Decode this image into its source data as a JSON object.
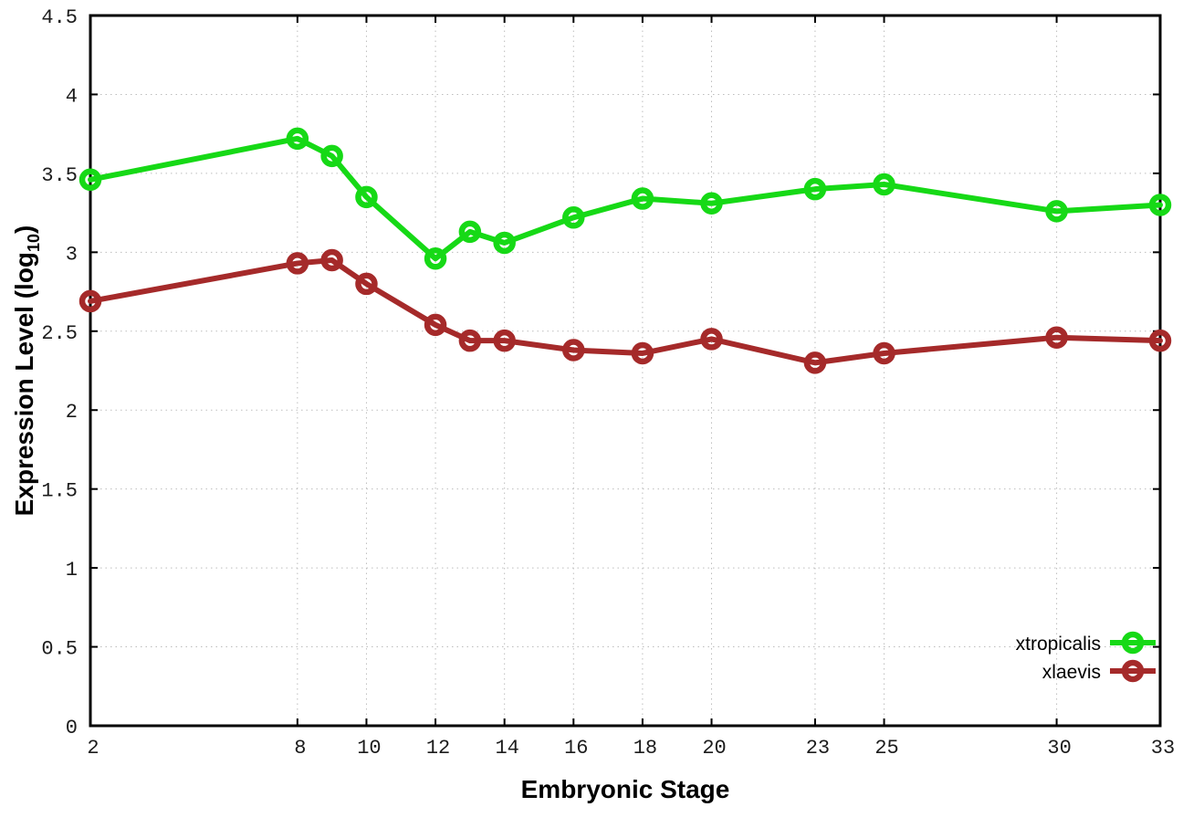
{
  "chart_data": {
    "type": "line",
    "title": "",
    "xlabel": "Embryonic Stage",
    "ylabel": {
      "main": "Expression Level (log",
      "sub": "10",
      "close": ")"
    },
    "x": [
      2,
      8,
      9,
      10,
      12,
      13,
      14,
      16,
      18,
      20,
      23,
      25,
      30,
      33
    ],
    "series": [
      {
        "name": "xtropicalis",
        "color": "#16d916",
        "values": [
          3.46,
          3.72,
          3.61,
          3.35,
          2.96,
          3.13,
          3.06,
          3.22,
          3.34,
          3.31,
          3.4,
          3.43,
          3.26,
          3.3
        ]
      },
      {
        "name": "xlaevis",
        "color": "#a52a2a",
        "values": [
          2.69,
          2.93,
          2.95,
          2.8,
          2.54,
          2.44,
          2.44,
          2.38,
          2.36,
          2.45,
          2.3,
          2.36,
          2.46,
          2.44
        ]
      }
    ],
    "xlim": [
      2,
      33
    ],
    "ylim": [
      0,
      4.5
    ],
    "xticks": [
      2,
      8,
      10,
      12,
      14,
      16,
      18,
      20,
      23,
      25,
      30,
      33
    ],
    "xtick_labels": [
      "2",
      "8",
      "10",
      "12",
      "14",
      "16",
      "18",
      "20",
      "23",
      "25",
      "30",
      "33"
    ],
    "yticks": [
      0,
      0.5,
      1,
      1.5,
      2,
      2.5,
      3,
      3.5,
      4,
      4.5
    ],
    "ytick_labels": [
      "0",
      "0.5",
      "1",
      "1.5",
      "2",
      "2.5",
      "3",
      "3.5",
      "4",
      "4.5"
    ],
    "grid": true,
    "legend_position": "bottom-right",
    "colors": {
      "background": "#ffffff",
      "axis": "#000000",
      "grid": "#bdbdbd",
      "text": "#1c1c1c"
    },
    "marker": "open-circle"
  }
}
